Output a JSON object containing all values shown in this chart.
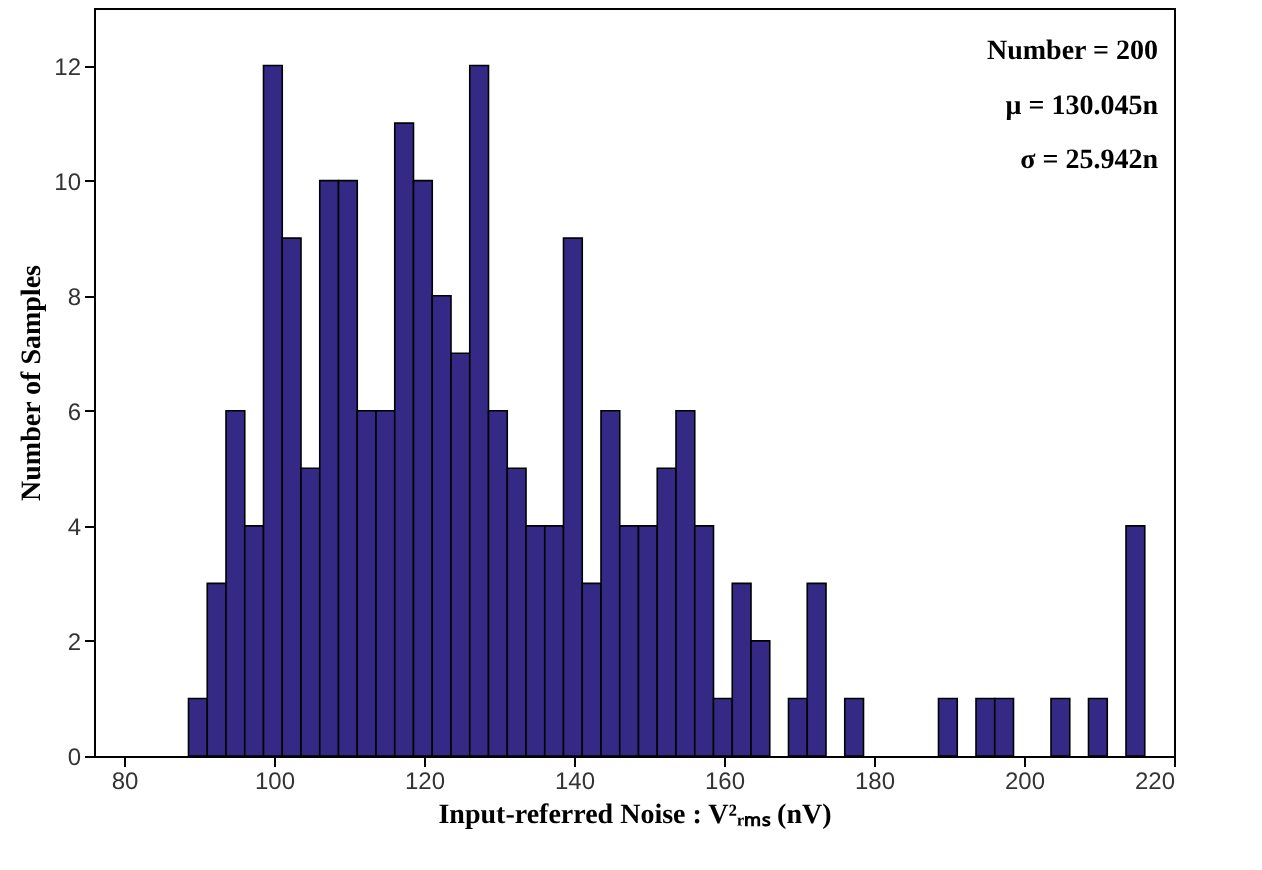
{
  "chart_data": {
    "type": "histogram",
    "xlabel": "Input-referred Noise : V²ᵣₘₛ (nV)",
    "ylabel": "Number of Samples",
    "annotations": [
      "Number = 200",
      "μ = 130.045n",
      "σ = 25.942n"
    ],
    "bins": [
      88.6,
      91.1,
      93.6,
      96.1,
      98.6,
      101.1,
      103.6,
      106.1,
      108.6,
      111.1,
      113.6,
      116.1,
      118.6,
      121.1,
      123.6,
      126.1,
      128.6,
      131.1,
      133.6,
      136.1,
      138.6,
      141.1,
      143.6,
      146.1,
      148.6,
      151.1,
      153.6,
      156.1,
      158.6,
      161.1,
      163.6,
      166.1,
      168.6,
      171.1,
      173.6,
      176.1,
      178.6,
      181.1,
      183.6,
      186.1,
      188.6,
      191.1,
      193.6,
      196.1,
      198.6,
      201.1,
      203.6,
      206.1,
      208.6,
      211.1,
      213.6,
      216.1
    ],
    "values": [
      1,
      3,
      6,
      4,
      12,
      9,
      5,
      10,
      10,
      6,
      6,
      11,
      10,
      8,
      7,
      12,
      6,
      5,
      4,
      4,
      9,
      3,
      6,
      4,
      4,
      5,
      6,
      4,
      1,
      3,
      2,
      0,
      1,
      3,
      0,
      1,
      0,
      0,
      0,
      0,
      1,
      0,
      1,
      1,
      0,
      0,
      1,
      0,
      1,
      0,
      4
    ],
    "color": "#342a85",
    "xlim": [
      76,
      220
    ],
    "xticks": [
      80,
      100,
      120,
      140,
      160,
      180,
      200,
      220
    ],
    "ylim": [
      0,
      13
    ],
    "yticks": [
      0,
      2,
      4,
      6,
      8,
      10,
      12
    ],
    "grid": false
  }
}
